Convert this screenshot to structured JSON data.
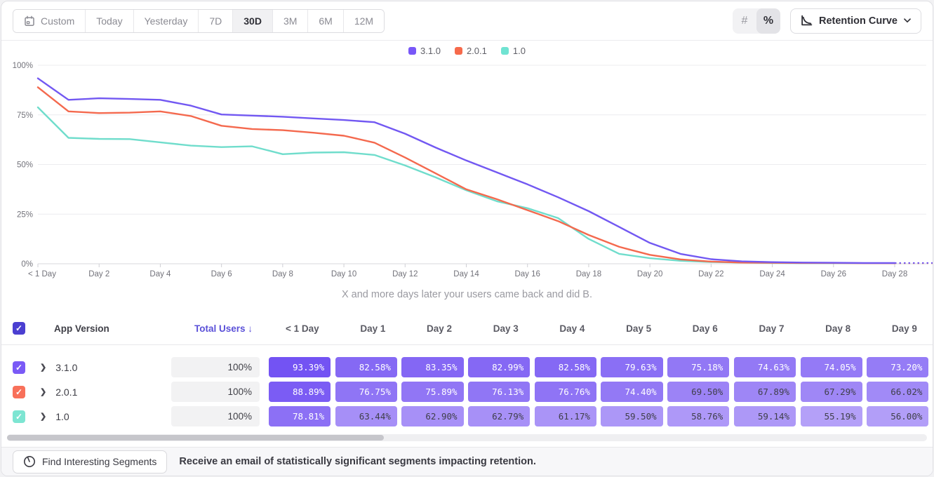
{
  "toolbar": {
    "date_ranges": [
      {
        "label": "Custom",
        "icon": "calendar-icon",
        "active": false
      },
      {
        "label": "Today",
        "active": false
      },
      {
        "label": "Yesterday",
        "active": false
      },
      {
        "label": "7D",
        "active": false
      },
      {
        "label": "30D",
        "active": true
      },
      {
        "label": "3M",
        "active": false
      },
      {
        "label": "6M",
        "active": false
      },
      {
        "label": "12M",
        "active": false
      }
    ],
    "value_modes": [
      {
        "label": "#",
        "name": "count-mode",
        "active": false
      },
      {
        "label": "%",
        "name": "percent-mode",
        "active": true
      }
    ],
    "chart_type_label": "Retention Curve"
  },
  "chart_data": {
    "type": "line",
    "caption": "X and more days later your users came back and did B.",
    "ylim": [
      0,
      100
    ],
    "y_tick_values": [
      0,
      25,
      50,
      75,
      100
    ],
    "y_tick_labels": [
      "0%",
      "25%",
      "50%",
      "75%",
      "100%"
    ],
    "x_tick_days": [
      0,
      2,
      4,
      6,
      8,
      10,
      12,
      14,
      16,
      18,
      20,
      22,
      24,
      26,
      28
    ],
    "x_tick_labels": [
      "< 1 Day",
      "Day 2",
      "Day 4",
      "Day 6",
      "Day 8",
      "Day 10",
      "Day 12",
      "Day 14",
      "Day 16",
      "Day 18",
      "Day 20",
      "Day 22",
      "Day 24",
      "Day 26",
      "Day 28"
    ],
    "grid": "horizontal",
    "legend_position": "top-center",
    "dashed_projection_to_day": 30.5,
    "series": [
      {
        "name": "3.1.0",
        "color": "#7258f2",
        "values": [
          93.39,
          82.58,
          83.35,
          82.99,
          82.58,
          79.63,
          75.18,
          74.63,
          74.05,
          73.2,
          72.4,
          71.3,
          65.5,
          58.5,
          52,
          46,
          40,
          33.5,
          26.5,
          18.5,
          10.5,
          5,
          2.3,
          1.2,
          0.8,
          0.6,
          0.5,
          0.4,
          0.4
        ]
      },
      {
        "name": "2.0.1",
        "color": "#f4694e",
        "values": [
          88.89,
          76.75,
          75.89,
          76.13,
          76.76,
          74.4,
          69.5,
          67.89,
          67.29,
          66.02,
          64.5,
          61,
          53.5,
          45.5,
          37.5,
          32.5,
          27,
          21.5,
          14.5,
          8.5,
          4.5,
          2.2,
          1.1,
          0.6,
          0.5,
          0.4,
          0.4,
          0.3,
          0.3
        ]
      },
      {
        "name": "1.0",
        "color": "#70ddcc",
        "values": [
          78.81,
          63.44,
          62.9,
          62.79,
          61.17,
          59.5,
          58.76,
          59.14,
          55.19,
          56,
          56.2,
          54.8,
          49.5,
          43.5,
          37,
          31.5,
          28,
          23,
          12.5,
          5,
          2.8,
          1.5,
          0.9,
          0.6,
          0.4,
          0.3,
          0.3,
          0.3,
          0.3
        ]
      }
    ]
  },
  "legend": [
    {
      "label": "3.1.0",
      "color": "#7857f8"
    },
    {
      "label": "2.0.1",
      "color": "#f66a4b"
    },
    {
      "label": "1.0",
      "color": "#70e3d2"
    }
  ],
  "table": {
    "select_all_checked": true,
    "headers": {
      "app_version": "App Version",
      "total_users": "Total Users",
      "sort_indicator": "↓",
      "days": [
        "< 1 Day",
        "Day 1",
        "Day 2",
        "Day 3",
        "Day 4",
        "Day 5",
        "Day 6",
        "Day 7",
        "Day 8",
        "Day 9"
      ]
    },
    "header_checkbox_color": "#4b3fd1",
    "rows": [
      {
        "label": "3.1.0",
        "color": "#7a5af6",
        "checked": true,
        "total": "100%",
        "values": [
          93.39,
          82.58,
          83.35,
          82.99,
          82.58,
          79.63,
          75.18,
          74.63,
          74.05,
          73.2
        ]
      },
      {
        "label": "2.0.1",
        "color": "#f8705a",
        "checked": true,
        "total": "100%",
        "values": [
          88.89,
          76.75,
          75.89,
          76.13,
          76.76,
          74.4,
          69.5,
          67.89,
          67.29,
          66.02
        ]
      },
      {
        "label": "1.0",
        "color": "#7de5d2",
        "checked": true,
        "total": "100%",
        "values": [
          78.81,
          63.44,
          62.9,
          62.79,
          61.17,
          59.5,
          58.76,
          59.14,
          55.19,
          56
        ]
      }
    ]
  },
  "footer": {
    "button_label": "Find Interesting Segments",
    "message": "Receive an email of statistically significant segments impacting retention."
  }
}
